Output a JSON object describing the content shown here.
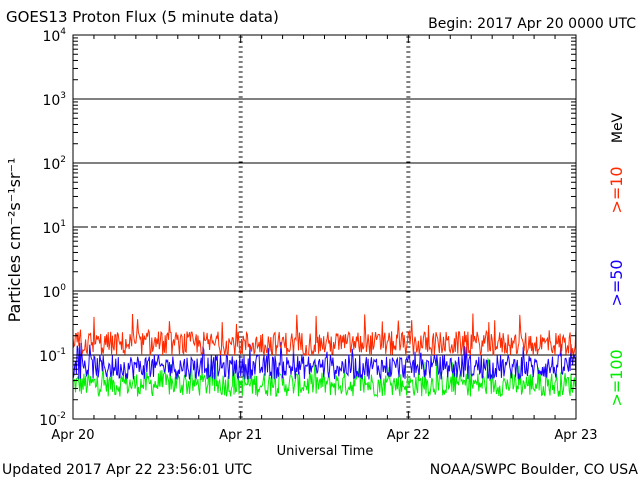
{
  "header": {
    "title": "GOES13 Proton Flux (5 minute data)",
    "begin": "Begin: 2017 Apr 20 0000 UTC"
  },
  "footer": {
    "updated": "Updated 2017 Apr 22 23:56:01 UTC",
    "source": "NOAA/SWPC Boulder, CO USA"
  },
  "chart_data": {
    "type": "line",
    "title": "GOES13 Proton Flux (5 minute data)",
    "xlabel": "Universal Time",
    "ylabel": "Particles cm⁻²s⁻¹sr⁻¹",
    "yscale": "log",
    "ylim": [
      0.01,
      10000
    ],
    "x_ticks": [
      "Apr 20",
      "Apr 21",
      "Apr 22",
      "Apr 23"
    ],
    "y_tick_labels": [
      {
        "base": "10",
        "exp": "-2"
      },
      {
        "base": "10",
        "exp": "-1"
      },
      {
        "base": "10",
        "exp": "0"
      },
      {
        "base": "10",
        "exp": "1"
      },
      {
        "base": "10",
        "exp": "2"
      },
      {
        "base": "10",
        "exp": "3"
      },
      {
        "base": "10",
        "exp": "4"
      }
    ],
    "threshold_lines": [
      {
        "value": 10,
        "style": "dashed"
      },
      {
        "value": 1,
        "style": "solid"
      },
      {
        "value": 100,
        "style": "solid"
      },
      {
        "value": 1000,
        "style": "solid"
      },
      {
        "value": 0.1,
        "style": "solid"
      }
    ],
    "unit_label": "MeV",
    "series": [
      {
        "name": ">=10",
        "color": "#ff2a00",
        "typical": 0.15,
        "min": 0.1,
        "max": 0.45
      },
      {
        "name": ">=50",
        "color": "#1a00ff",
        "typical": 0.065,
        "min": 0.04,
        "max": 0.16
      },
      {
        "name": ">=100",
        "color": "#00ee00",
        "typical": 0.035,
        "min": 0.02,
        "max": 0.09
      }
    ]
  }
}
